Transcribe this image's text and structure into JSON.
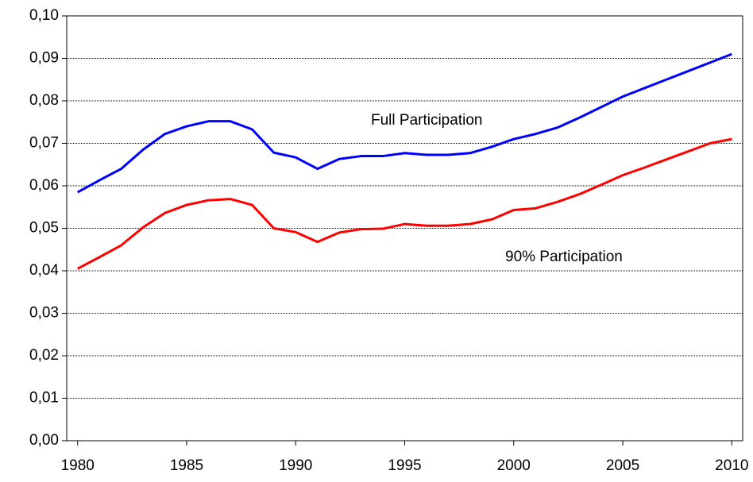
{
  "chart_data": {
    "type": "line",
    "x": [
      1980,
      1981,
      1982,
      1983,
      1984,
      1985,
      1986,
      1987,
      1988,
      1989,
      1990,
      1991,
      1992,
      1993,
      1994,
      1995,
      1996,
      1997,
      1998,
      1999,
      2000,
      2001,
      2002,
      2003,
      2004,
      2005,
      2006,
      2007,
      2008,
      2009,
      2010
    ],
    "xlim": [
      1979.5,
      2010.5
    ],
    "xticks": [
      1980,
      1985,
      1990,
      1995,
      2000,
      2005,
      2010
    ],
    "ylim": [
      0,
      0.1
    ],
    "yticks": [
      {
        "value": 0,
        "label": "0,00"
      },
      {
        "value": 0.01,
        "label": "0,01"
      },
      {
        "value": 0.02,
        "label": "0,02"
      },
      {
        "value": 0.03,
        "label": "0,03"
      },
      {
        "value": 0.04,
        "label": "0,04"
      },
      {
        "value": 0.05,
        "label": "0,05"
      },
      {
        "value": 0.06,
        "label": "0,06"
      },
      {
        "value": 0.07,
        "label": "0,07"
      },
      {
        "value": 0.08,
        "label": "0,08"
      },
      {
        "value": 0.09,
        "label": "0,09"
      },
      {
        "value": 0.1,
        "label": "0,10"
      }
    ],
    "grid": true,
    "series": [
      {
        "name": "Full Participation",
        "color": "#0000ff",
        "values": [
          0.0585,
          0.0613,
          0.064,
          0.0685,
          0.0722,
          0.074,
          0.0752,
          0.0752,
          0.0733,
          0.0678,
          0.0667,
          0.064,
          0.0663,
          0.067,
          0.067,
          0.0677,
          0.0673,
          0.0673,
          0.0677,
          0.0692,
          0.071,
          0.0722,
          0.0737,
          0.076,
          0.0785,
          0.081,
          0.083,
          0.085,
          0.087,
          0.089,
          0.091
        ]
      },
      {
        "name": "90% Participation",
        "color": "#ff0000",
        "values": [
          0.0405,
          0.0432,
          0.046,
          0.0502,
          0.0536,
          0.0555,
          0.0566,
          0.0569,
          0.0555,
          0.05,
          0.0491,
          0.0468,
          0.049,
          0.0498,
          0.0499,
          0.051,
          0.0506,
          0.0506,
          0.051,
          0.0521,
          0.0543,
          0.0547,
          0.0562,
          0.058,
          0.0602,
          0.0625,
          0.0643,
          0.0662,
          0.0681,
          0.07,
          0.071
        ]
      }
    ]
  }
}
